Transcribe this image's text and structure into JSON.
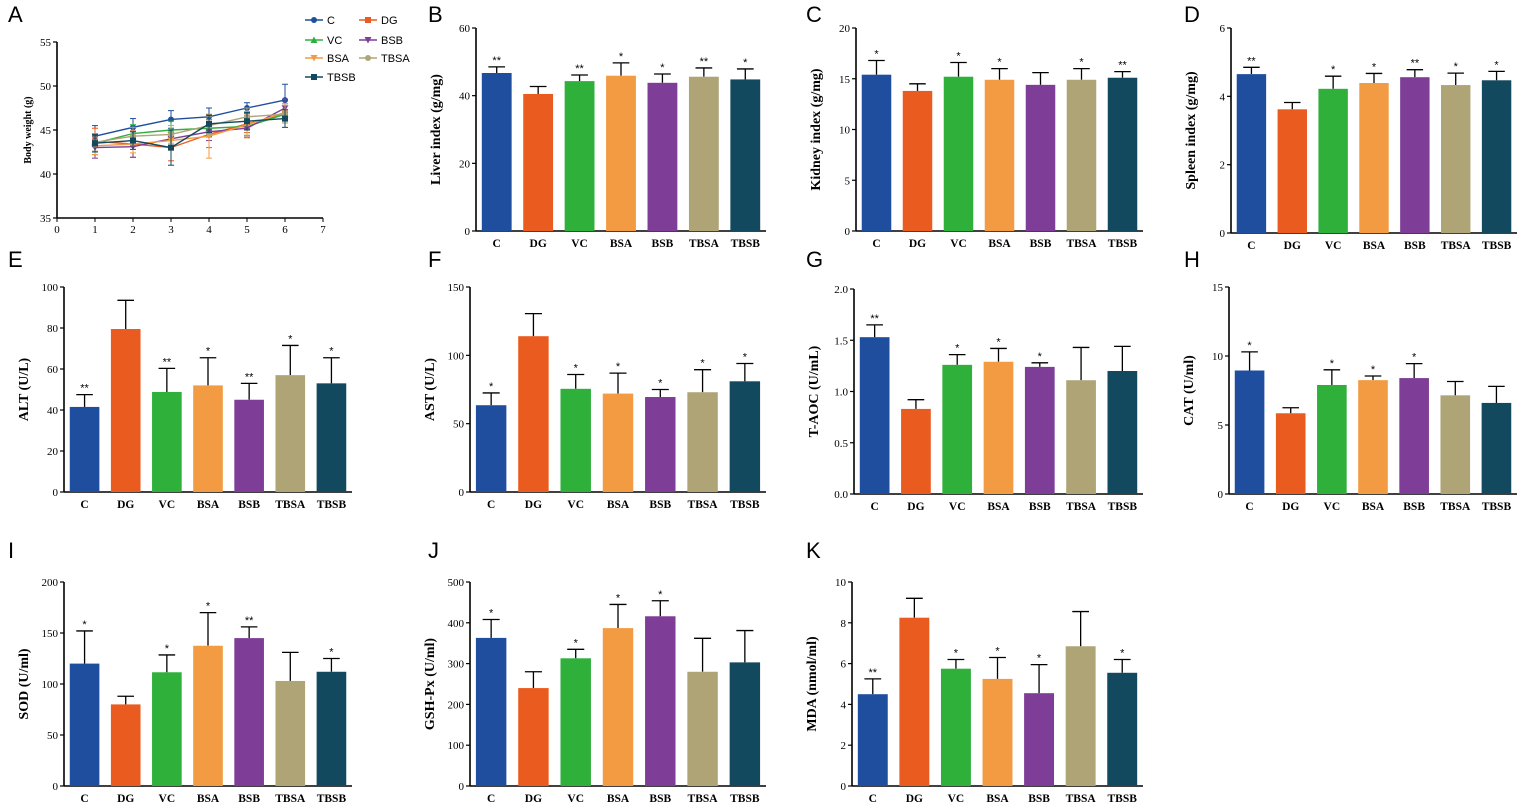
{
  "colors": {
    "C": "#1f4e9f",
    "DG": "#ea5b1f",
    "VC": "#2eb03b",
    "BSA": "#f39b42",
    "BSB": "#7e3d96",
    "TBSA": "#aea476",
    "TBSB": "#12495e"
  },
  "chart_data": [
    {
      "id": "A",
      "type": "line",
      "label": "A",
      "ylabel": "Body weight (g)",
      "xlabel": "",
      "xlim": [
        0,
        7
      ],
      "ylim": [
        35,
        55
      ],
      "xticks": [
        "0",
        "1",
        "2",
        "3",
        "4",
        "5",
        "6",
        "7"
      ],
      "yticks": [
        "35",
        "40",
        "45",
        "50",
        "55"
      ],
      "x": [
        1,
        2,
        3,
        4,
        5,
        6
      ],
      "series": [
        {
          "name": "C",
          "values": [
            44.3,
            45.3,
            46.2,
            46.5,
            47.5,
            48.4
          ],
          "errors": [
            1.2,
            1.0,
            1.0,
            1.0,
            0.6,
            1.8
          ],
          "marker": "circle"
        },
        {
          "name": "DG",
          "values": [
            43.7,
            43.4,
            43.0,
            44.5,
            45.7,
            46.8
          ],
          "errors": [
            1.5,
            1.5,
            1.5,
            1.5,
            1.0,
            1.0
          ],
          "marker": "square"
        },
        {
          "name": "VC",
          "values": [
            43.5,
            44.6,
            45.0,
            45.2,
            45.4,
            46.8
          ],
          "errors": [
            1.0,
            1.0,
            1.0,
            1.0,
            1.0,
            1.0
          ],
          "marker": "triangle-up"
        },
        {
          "name": "BSB",
          "values": [
            43.0,
            43.1,
            44.0,
            44.8,
            45.2,
            47.5
          ],
          "errors": [
            1.2,
            1.2,
            1.0,
            1.0,
            1.0,
            1.0
          ],
          "marker": "triangle-down"
        },
        {
          "name": "BSA",
          "values": [
            43.2,
            43.4,
            43.8,
            44.3,
            45.6,
            47.0
          ],
          "errors": [
            1.0,
            1.0,
            1.0,
            2.5,
            1.5,
            1.0
          ],
          "marker": "triangle-down"
        },
        {
          "name": "TBSA",
          "values": [
            43.6,
            44.3,
            44.5,
            45.5,
            46.5,
            46.8
          ],
          "errors": [
            1.0,
            1.0,
            1.0,
            1.0,
            1.0,
            1.0
          ],
          "marker": "circle"
        },
        {
          "name": "TBSB",
          "values": [
            43.5,
            43.8,
            43.0,
            45.7,
            46.0,
            46.3
          ],
          "errors": [
            1.0,
            1.0,
            2.0,
            1.0,
            1.0,
            1.0
          ],
          "marker": "square"
        }
      ],
      "legend": [
        "C",
        "DG",
        "VC",
        "BSB",
        "BSA",
        "TBSA",
        "TBSB"
      ]
    },
    {
      "id": "B",
      "type": "bar",
      "label": "B",
      "ylabel": "Liver index (g/mg)",
      "ylim": [
        0,
        60
      ],
      "yticks": [
        "0",
        "20",
        "40",
        "60"
      ],
      "categories": [
        "C",
        "DG",
        "VC",
        "BSA",
        "BSB",
        "TBSA",
        "TBSB"
      ],
      "values": [
        46.7,
        40.5,
        44.3,
        45.9,
        43.8,
        45.6,
        44.8
      ],
      "errors": [
        1.8,
        2.2,
        1.8,
        3.8,
        2.6,
        2.6,
        3.1
      ],
      "stars": [
        "**",
        "",
        "**",
        "*",
        "*",
        "**",
        "*"
      ]
    },
    {
      "id": "C",
      "type": "bar",
      "label": "C",
      "ylabel": "Kidney index (g/mg)",
      "ylim": [
        0,
        20
      ],
      "yticks": [
        "0",
        "5",
        "10",
        "15",
        "20"
      ],
      "categories": [
        "C",
        "DG",
        "VC",
        "BSA",
        "BSB",
        "TBSA",
        "TBSB"
      ],
      "values": [
        15.4,
        13.8,
        15.2,
        14.9,
        14.4,
        14.9,
        15.1
      ],
      "errors": [
        1.4,
        0.7,
        1.4,
        1.1,
        1.2,
        1.1,
        0.6
      ],
      "stars": [
        "*",
        "",
        "*",
        "*",
        "",
        "*",
        "**"
      ]
    },
    {
      "id": "D",
      "type": "bar",
      "label": "D",
      "ylabel": "Spleen index (g/mg)",
      "ylim": [
        0,
        6
      ],
      "yticks": [
        "0",
        "2",
        "4",
        "6"
      ],
      "categories": [
        "C",
        "DG",
        "VC",
        "BSA",
        "BSB",
        "TBSA",
        "TBSB"
      ],
      "values": [
        4.65,
        3.62,
        4.22,
        4.39,
        4.56,
        4.33,
        4.47
      ],
      "errors": [
        0.2,
        0.2,
        0.37,
        0.28,
        0.22,
        0.35,
        0.26
      ],
      "stars": [
        "**",
        "",
        "*",
        "*",
        "**",
        "*",
        "*"
      ]
    },
    {
      "id": "E",
      "type": "bar",
      "label": "E",
      "ylabel": "ALT (U/L)",
      "ylim": [
        0,
        100
      ],
      "yticks": [
        "0",
        "20",
        "40",
        "60",
        "80",
        "100"
      ],
      "categories": [
        "C",
        "DG",
        "VC",
        "BSA",
        "BSB",
        "TBSA",
        "TBSB"
      ],
      "values": [
        41.5,
        79.5,
        48.8,
        52,
        45,
        57,
        53
      ],
      "errors": [
        6,
        14,
        11.5,
        13.5,
        8,
        14.5,
        12.5
      ],
      "stars": [
        "**",
        "",
        "**",
        "*",
        "**",
        "*",
        "*"
      ]
    },
    {
      "id": "F",
      "type": "bar",
      "label": "F",
      "ylabel": "AST (U/L)",
      "ylim": [
        0,
        150
      ],
      "yticks": [
        "0",
        "50",
        "100",
        "150"
      ],
      "categories": [
        "C",
        "DG",
        "VC",
        "BSA",
        "BSB",
        "TBSA",
        "TBSB"
      ],
      "values": [
        63.5,
        114,
        75.5,
        72,
        69.5,
        73,
        81
      ],
      "errors": [
        9,
        16.5,
        10.5,
        15,
        5.5,
        16.5,
        13
      ],
      "stars": [
        "*",
        "",
        "*",
        "*",
        "*",
        "*",
        "*"
      ]
    },
    {
      "id": "G",
      "type": "bar",
      "label": "G",
      "ylabel": "T-AOC (U/mL)",
      "ylim": [
        0,
        2.0
      ],
      "yticks": [
        "0.0",
        "0.5",
        "1.0",
        "1.5",
        "2.0"
      ],
      "categories": [
        "C",
        "DG",
        "VC",
        "BSA",
        "BSB",
        "TBSA",
        "TBSB"
      ],
      "values": [
        1.53,
        0.83,
        1.26,
        1.29,
        1.24,
        1.11,
        1.2
      ],
      "errors": [
        0.12,
        0.09,
        0.1,
        0.13,
        0.04,
        0.32,
        0.24
      ],
      "stars": [
        "**",
        "",
        "*",
        "*",
        "*",
        "",
        ""
      ]
    },
    {
      "id": "H",
      "type": "bar",
      "label": "H",
      "ylabel": "CAT (U/ml)",
      "ylim": [
        0,
        15
      ],
      "yticks": [
        "0",
        "5",
        "10",
        "15"
      ],
      "categories": [
        "C",
        "DG",
        "VC",
        "BSA",
        "BSB",
        "TBSA",
        "TBSB"
      ],
      "values": [
        8.95,
        5.85,
        7.9,
        8.25,
        8.4,
        7.15,
        6.6
      ],
      "errors": [
        1.35,
        0.4,
        1.1,
        0.3,
        1.05,
        1.0,
        1.2
      ],
      "stars": [
        "*",
        "",
        "*",
        "*",
        "*",
        "",
        ""
      ]
    },
    {
      "id": "I",
      "type": "bar",
      "label": "I",
      "ylabel": "SOD (U/ml)",
      "ylim": [
        0,
        200
      ],
      "yticks": [
        "0",
        "50",
        "100",
        "150",
        "200"
      ],
      "categories": [
        "C",
        "DG",
        "VC",
        "BSA",
        "BSB",
        "TBSA",
        "TBSB"
      ],
      "values": [
        120,
        80,
        111.5,
        137.5,
        145,
        103,
        112
      ],
      "errors": [
        32,
        8,
        17,
        32.5,
        11,
        28,
        13
      ],
      "stars": [
        "*",
        "",
        "*",
        "*",
        "**",
        "",
        "*"
      ]
    },
    {
      "id": "J",
      "type": "bar",
      "label": "J",
      "ylabel": "GSH-Px (U/ml)",
      "ylim": [
        0,
        500
      ],
      "yticks": [
        "0",
        "100",
        "200",
        "300",
        "400",
        "500"
      ],
      "categories": [
        "C",
        "DG",
        "VC",
        "BSA",
        "BSB",
        "TBSA",
        "TBSB"
      ],
      "values": [
        363,
        240,
        313,
        387,
        416,
        280,
        303
      ],
      "errors": [
        45,
        40,
        22,
        58,
        38,
        82,
        78
      ],
      "stars": [
        "*",
        "",
        "*",
        "*",
        "*",
        "",
        ""
      ]
    },
    {
      "id": "K",
      "type": "bar",
      "label": "K",
      "ylabel": "MDA (nmol/ml)",
      "ylim": [
        0,
        10
      ],
      "yticks": [
        "0",
        "2",
        "4",
        "6",
        "8",
        "10"
      ],
      "categories": [
        "C",
        "DG",
        "VC",
        "BSA",
        "BSB",
        "TBSA",
        "TBSB"
      ],
      "values": [
        4.5,
        8.25,
        5.75,
        5.25,
        4.55,
        6.85,
        5.55
      ],
      "errors": [
        0.75,
        0.95,
        0.45,
        1.05,
        1.4,
        1.7,
        0.65
      ],
      "stars": [
        "**",
        "",
        "*",
        "*",
        "*",
        "",
        "*"
      ]
    }
  ]
}
